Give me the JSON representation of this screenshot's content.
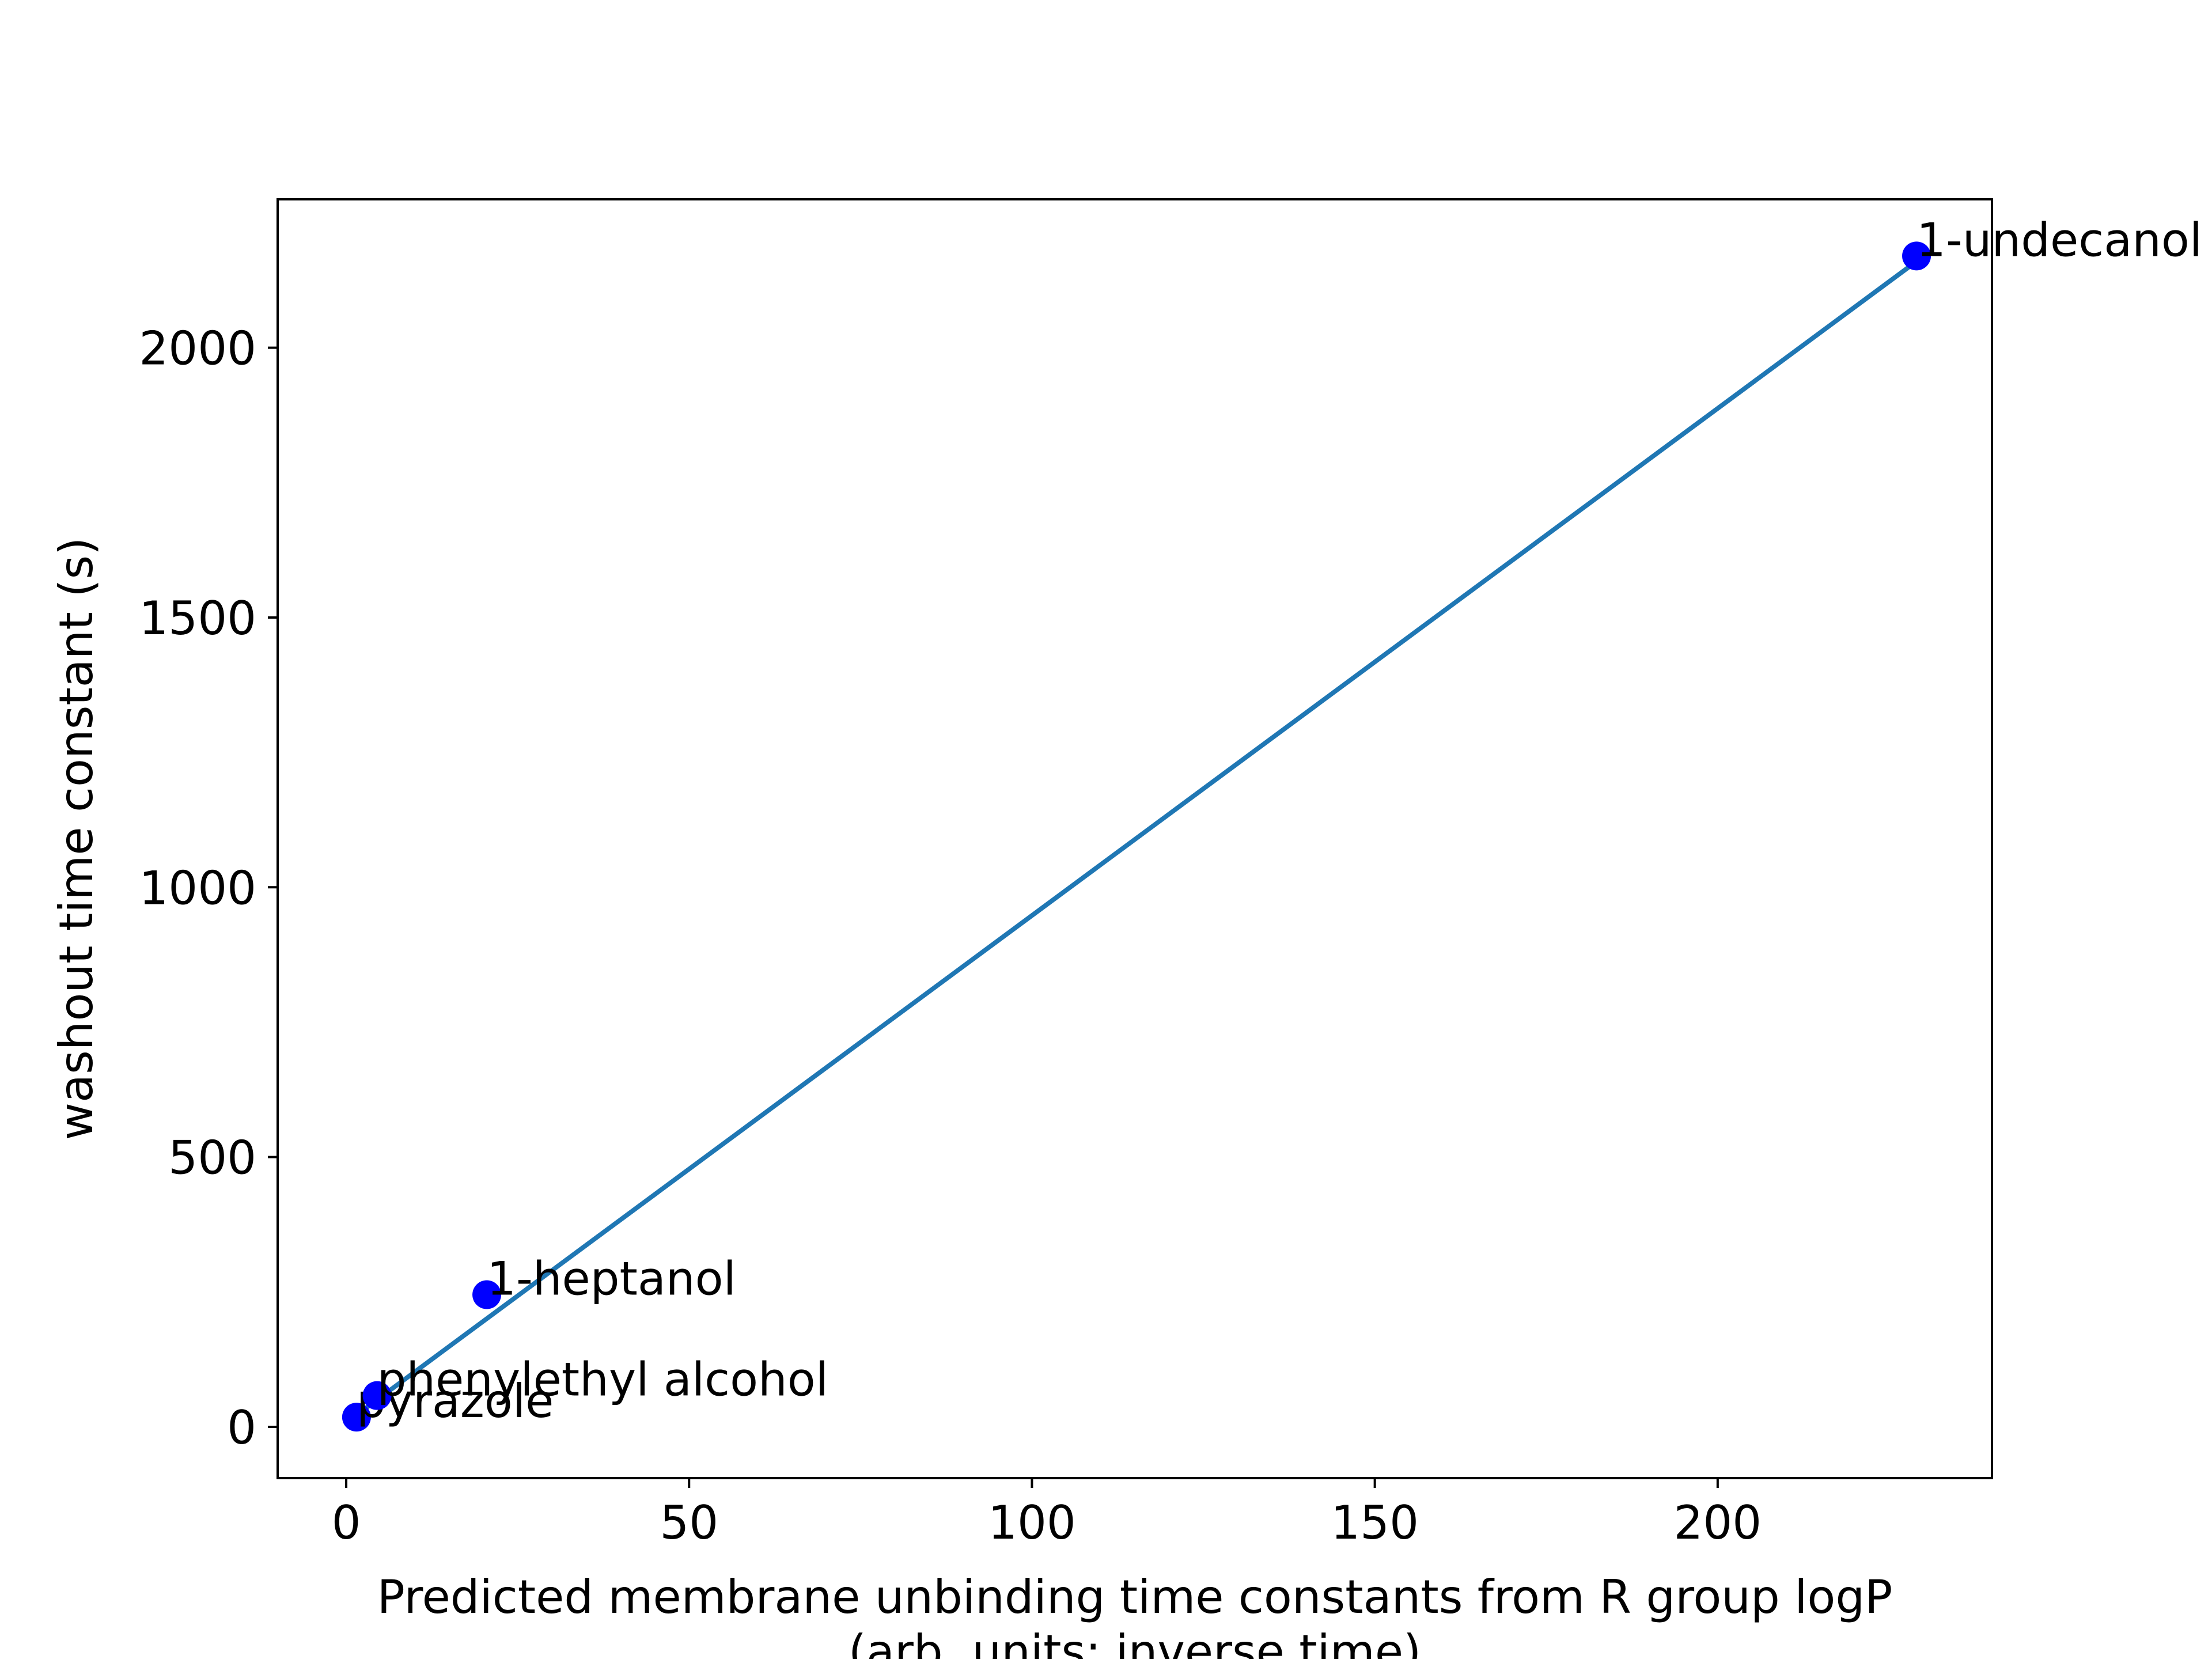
{
  "chart_data": {
    "type": "scatter",
    "xlabel_lines": [
      "Predicted membrane unbinding time constants from R group logP",
      "(arb. units; inverse time)"
    ],
    "ylabel": "washout time constant (s)",
    "xlim": [
      -10,
      240
    ],
    "ylim": [
      -95,
      2275
    ],
    "xticks": [
      0,
      50,
      100,
      150,
      200
    ],
    "yticks": [
      0,
      500,
      1000,
      1500,
      2000
    ],
    "grid": false,
    "points": [
      {
        "label": "pyrazole",
        "x": 1.5,
        "y": 18
      },
      {
        "label": "phenylethyl alcohol",
        "x": 4.5,
        "y": 58
      },
      {
        "label": "1-heptanol",
        "x": 20.5,
        "y": 245
      },
      {
        "label": "1-undecanol",
        "x": 229.0,
        "y": 2170
      }
    ],
    "fit_line": {
      "x": [
        1.5,
        229.0
      ],
      "y": [
        22,
        2160
      ]
    },
    "colors": {
      "points": "#0000ff",
      "fit_line": "#1f77b4",
      "axes": "#000000"
    }
  }
}
